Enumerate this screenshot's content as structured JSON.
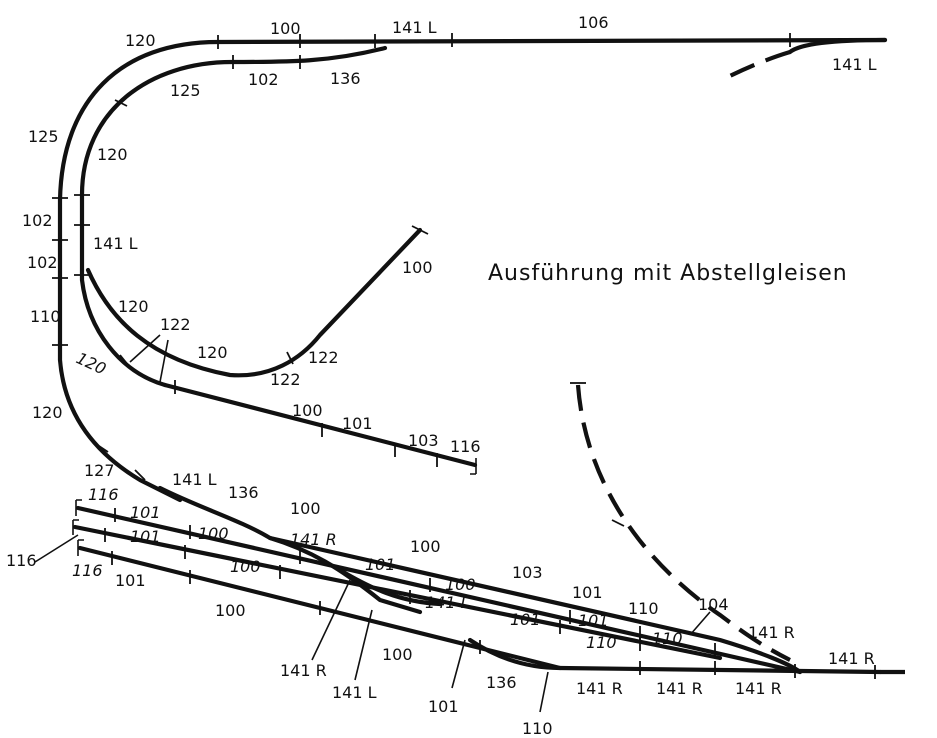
{
  "title": "Ausführung mit Abstellgleisen",
  "labels": {
    "top_120": "120",
    "top_100": "100",
    "top_141L_a": "141 L",
    "top_106": "106",
    "top_125": "125",
    "top_102": "102",
    "top_136": "136",
    "top_141L_b": "141 L",
    "left_125": "125",
    "left_120": "120",
    "left_102a": "102",
    "left_102b": "102",
    "left_141L": "141 L",
    "left_110": "110",
    "left_120b": "120",
    "in_120": "120",
    "in_122a": "122",
    "in_120i": "120",
    "in_120c": "120",
    "in_122b": "122",
    "in_122c": "122",
    "spur_100": "100",
    "sid_100": "100",
    "sid_101": "101",
    "sid_103": "103",
    "sid_116": "116",
    "y_127": "127",
    "y_141L": "141 L",
    "y_136": "136",
    "y_100a": "100",
    "st_116a": "116",
    "st_101a": "101",
    "st_100a": "100",
    "st_141R": "141 R",
    "st_116b": "116",
    "st_101b": "101",
    "st_100b": "100",
    "st_101c": "101",
    "st_100c": "100",
    "st_116c": "116",
    "st_101d": "101",
    "st_100d": "100",
    "st_141Li": "141 L",
    "st_100e": "100",
    "st_103": "103",
    "st_101e": "101",
    "st_110a": "110",
    "st_101f": "101",
    "st_101g": "101",
    "st_110b": "110",
    "st_110c": "110",
    "st_104": "104",
    "st_141R_a": "141 R",
    "st_141R_b": "141 R",
    "bot_141R_a": "141 R",
    "bot_141L": "141 L",
    "bot_100": "100",
    "bot_101": "101",
    "bot_136": "136",
    "bot_110": "110",
    "bot_141R_b": "141 R",
    "bot_141R_c": "141 R",
    "bot_141R_d": "141 R"
  }
}
